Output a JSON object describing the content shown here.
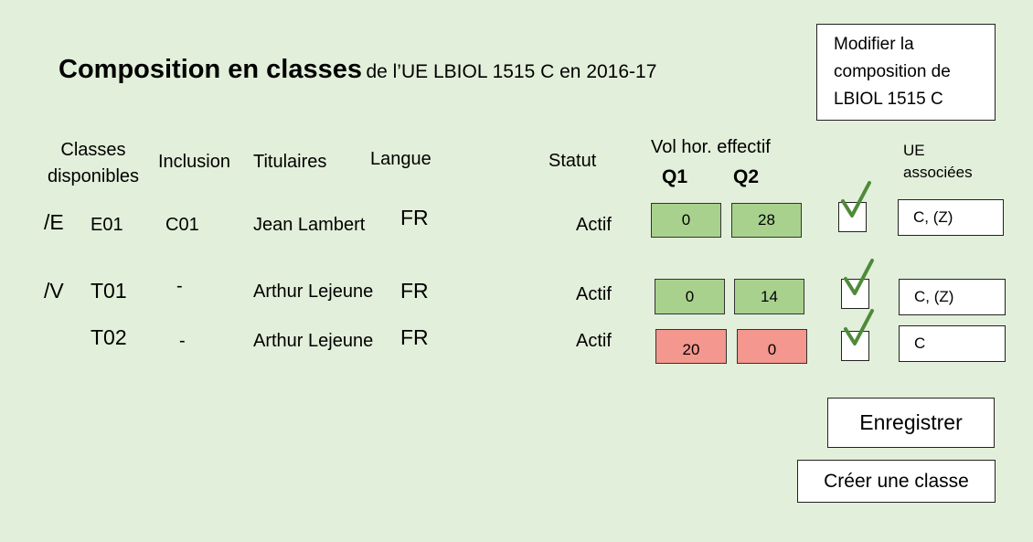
{
  "header": {
    "title": "Composition en classes",
    "subtitle": "de l’UE LBIOL 1515 C en 2016-17",
    "modify_button": [
      "Modifier la",
      "composition de",
      "LBIOL 1515 C"
    ]
  },
  "columns": {
    "classes": [
      "Classes",
      "disponibles"
    ],
    "inclusion": "Inclusion",
    "titulaires": "Titulaires",
    "langue": "Langue",
    "statut": "Statut",
    "vol": "Vol hor. effectif",
    "q1": "Q1",
    "q2": "Q2",
    "ue": [
      "UE",
      "associées"
    ]
  },
  "groups": [
    {
      "label": "/E"
    },
    {
      "label": "/V"
    }
  ],
  "rows": [
    {
      "classe": "E01",
      "inclusion": "C01",
      "titulaire": "Jean Lambert",
      "langue": "FR",
      "statut": "Actif",
      "q1": "0",
      "q2": "28",
      "q1_color": "#a9d18e",
      "q2_color": "#a9d18e",
      "checked": true,
      "ue": "C, (Z)"
    },
    {
      "classe": "T01",
      "inclusion": "-",
      "titulaire": "Arthur Lejeune",
      "langue": "FR",
      "statut": "Actif",
      "q1": "0",
      "q2": "14",
      "q1_color": "#a9d18e",
      "q2_color": "#a9d18e",
      "checked": true,
      "ue": "C, (Z)"
    },
    {
      "classe": "T02",
      "inclusion": "-",
      "titulaire": "Arthur Lejeune",
      "langue": "FR",
      "statut": "Actif",
      "q1": "20",
      "q2": "0",
      "q1_color": "#f4978e",
      "q2_color": "#f4978e",
      "checked": true,
      "ue": "C"
    }
  ],
  "actions": {
    "save": "Enregistrer",
    "create": "Créer une classe"
  },
  "icons": {
    "check": "checkmark-icon"
  }
}
